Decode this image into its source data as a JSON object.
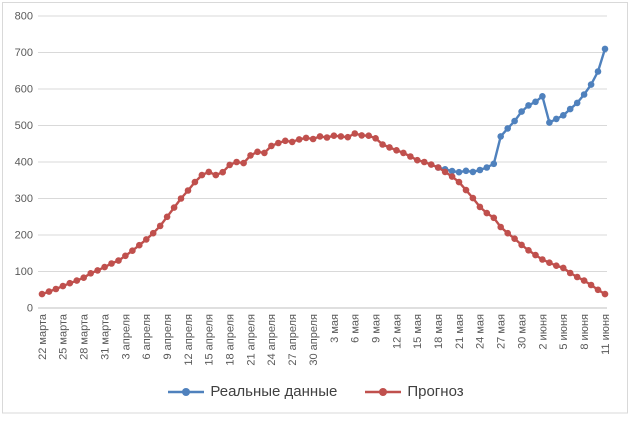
{
  "chart_data": {
    "type": "line",
    "title": "",
    "grid": true,
    "legend_position": "bottom",
    "y_axis": {
      "min": 0,
      "max": 800,
      "step": 100,
      "tick_labels": [
        "0",
        "100",
        "200",
        "300",
        "400",
        "500",
        "600",
        "700",
        "800"
      ]
    },
    "x_axis": {
      "days_per_tick": 3,
      "tick_labels": [
        "22 марта",
        "25 марта",
        "28 марта",
        "31 марта",
        "3 апреля",
        "6 апреля",
        "9 апреля",
        "12 апреля",
        "15 апреля",
        "18 апреля",
        "21 апреля",
        "24 апреля",
        "27 апреля",
        "30 апреля",
        "3 мая",
        "6 мая",
        "9 мая",
        "12 мая",
        "15 мая",
        "18 мая",
        "21 мая",
        "24 мая",
        "27 мая",
        "30 мая",
        "2 июня",
        "5 июня",
        "8 июня",
        "11 июня"
      ]
    },
    "series": [
      {
        "name": "Реальные данные",
        "color": "#4F81BD",
        "marker": "circle",
        "start_day": 57,
        "start_date_label": "18 мая",
        "values": [
          385,
          380,
          375,
          372,
          376,
          373,
          378,
          385,
          395,
          470,
          492,
          512,
          538,
          555,
          565,
          580,
          508,
          518,
          528,
          545,
          562,
          585,
          612,
          648,
          710
        ]
      },
      {
        "name": "Прогноз",
        "color": "#C0504D",
        "marker": "circle",
        "start_day": 0,
        "start_date_label": "22 марта",
        "values": [
          38,
          45,
          52,
          60,
          68,
          75,
          83,
          95,
          103,
          112,
          122,
          130,
          143,
          157,
          172,
          188,
          205,
          225,
          250,
          275,
          300,
          322,
          345,
          364,
          373,
          364,
          372,
          392,
          400,
          397,
          418,
          428,
          425,
          444,
          452,
          458,
          455,
          462,
          466,
          463,
          470,
          467,
          472,
          470,
          468,
          478,
          473,
          472,
          465,
          448,
          440,
          432,
          425,
          415,
          405,
          400,
          393,
          385,
          373,
          360,
          345,
          323,
          301,
          277,
          260,
          247,
          222,
          205,
          190,
          173,
          158,
          145,
          133,
          124,
          116,
          110,
          96,
          85,
          75,
          63,
          50,
          38
        ]
      }
    ]
  },
  "colors": {
    "background": "#FFFFFF",
    "border": "#D9D9D9",
    "grid": "#D9D9D9",
    "axis_line": "#BFBFBF",
    "tick_text": "#595959",
    "legend_text": "#404040"
  }
}
